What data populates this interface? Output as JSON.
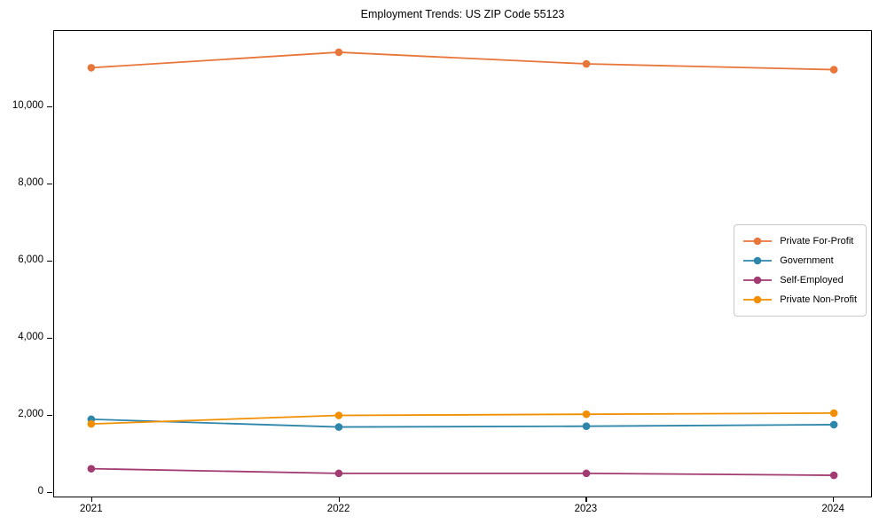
{
  "chart_data": {
    "type": "line",
    "title": "Employment Trends: US ZIP Code 55123",
    "categories": [
      2021,
      2022,
      2023,
      2024
    ],
    "series": [
      {
        "name": "Private For-Profit",
        "color": "#E8763B",
        "values": [
          11000,
          11400,
          11100,
          10950
        ]
      },
      {
        "name": "Government",
        "color": "#2E86AB",
        "values": [
          1900,
          1700,
          1720,
          1760
        ]
      },
      {
        "name": "Self-Employed",
        "color": "#A23B72",
        "values": [
          620,
          500,
          500,
          450
        ]
      },
      {
        "name": "Private Non-Profit",
        "color": "#F18F01",
        "values": [
          1780,
          2000,
          2030,
          2060
        ]
      }
    ],
    "xlabel": "",
    "ylabel": "",
    "xlim": [
      2020.85,
      2024.15
    ],
    "ylim": [
      -100,
      11950
    ],
    "xticks": [
      2021,
      2022,
      2023,
      2024
    ],
    "yticks": [
      0,
      2000,
      4000,
      6000,
      8000,
      10000
    ],
    "ytick_labels": [
      "0",
      "2,000",
      "4,000",
      "6,000",
      "8,000",
      "10,000"
    ],
    "grid": false,
    "legend_position": "center-right",
    "marker": "circle",
    "frame_color": "#000000",
    "background_color": "#ffffff"
  }
}
